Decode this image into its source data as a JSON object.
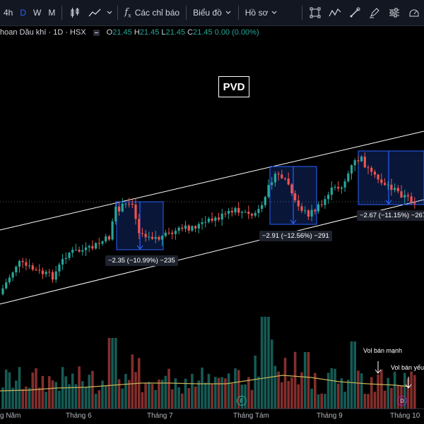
{
  "toolbar": {
    "intervals": [
      "4h",
      "D",
      "W",
      "M"
    ],
    "active_interval": "D",
    "indicators_label": "Các chỉ báo",
    "chart_type_label": "Biểu đồ",
    "profile_label": "Hồ sơ",
    "icon_names": [
      "candles-icon",
      "line-trend-icon",
      "chevron-down-icon",
      "fx-icon",
      "square-select-icon",
      "zigzag-icon",
      "brush-icon",
      "pen-icon",
      "settings-sliders-icon",
      "ruler-icon"
    ]
  },
  "legend": {
    "symbol": "hoan Dầu khí · 1D · HSX",
    "open": "21.45",
    "high": "21.45",
    "low": "21.45",
    "close": "21.45",
    "change": "0.00 (0.00%)",
    "o_label": "O",
    "h_label": "H",
    "l_label": "L",
    "c_label": "C"
  },
  "ticker": "PVD",
  "measures": [
    {
      "text": "−2.35 (−10.99%) −235"
    },
    {
      "text": "−2.91 (−12.56%) −291"
    },
    {
      "text": "−2.67 (−11.15%) −267"
    }
  ],
  "annotations": {
    "strong_sell": "Vol bán mạnh",
    "weak_sell": "Vol bán yếu"
  },
  "xaxis": {
    "labels": [
      "g Năm",
      "Tháng 6",
      "Tháng 7",
      "Tháng Tám",
      "Tháng 9",
      "Tháng 10"
    ]
  },
  "events": [
    {
      "letter": "F",
      "color": "#26a69a"
    },
    {
      "letter": "D",
      "color": "#9c27b0"
    }
  ],
  "colors": {
    "up": "#26a69a",
    "down": "#ef5350",
    "measure_line": "#2962ff",
    "channel": "#ffffff",
    "volume_ma": "#c9b458",
    "background": "#000000"
  }
}
